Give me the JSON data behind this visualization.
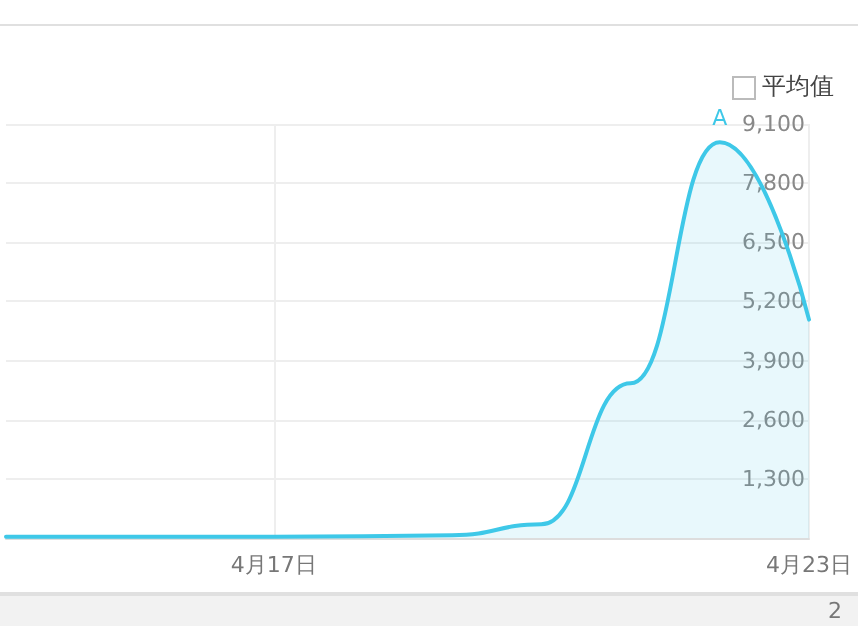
{
  "chart_data": {
    "type": "area",
    "categories": [
      null,
      null,
      null,
      "4月17日",
      null,
      null,
      null,
      null,
      null,
      "4月23日"
    ],
    "series": [
      {
        "color": "#3ec8e8",
        "values": [
          30,
          30,
          30,
          30,
          40,
          60,
          300,
          3400,
          8700,
          4800
        ]
      }
    ],
    "ylim": [
      0,
      9100
    ],
    "yticks": [
      {
        "value": 0,
        "label": null
      },
      {
        "value": 1300,
        "label": "1,300"
      },
      {
        "value": 2600,
        "label": "2,600"
      },
      {
        "value": 3900,
        "label": "3,900"
      },
      {
        "value": 5200,
        "label": "5,200"
      },
      {
        "value": 6500,
        "label": "6,500"
      },
      {
        "value": 7800,
        "label": "7,800"
      },
      {
        "value": 9100,
        "label": "9,100"
      }
    ],
    "grid": true,
    "marker": "none",
    "line_style": "solid",
    "legend_title": "平均值",
    "annotations": [
      "A",
      "2"
    ]
  }
}
